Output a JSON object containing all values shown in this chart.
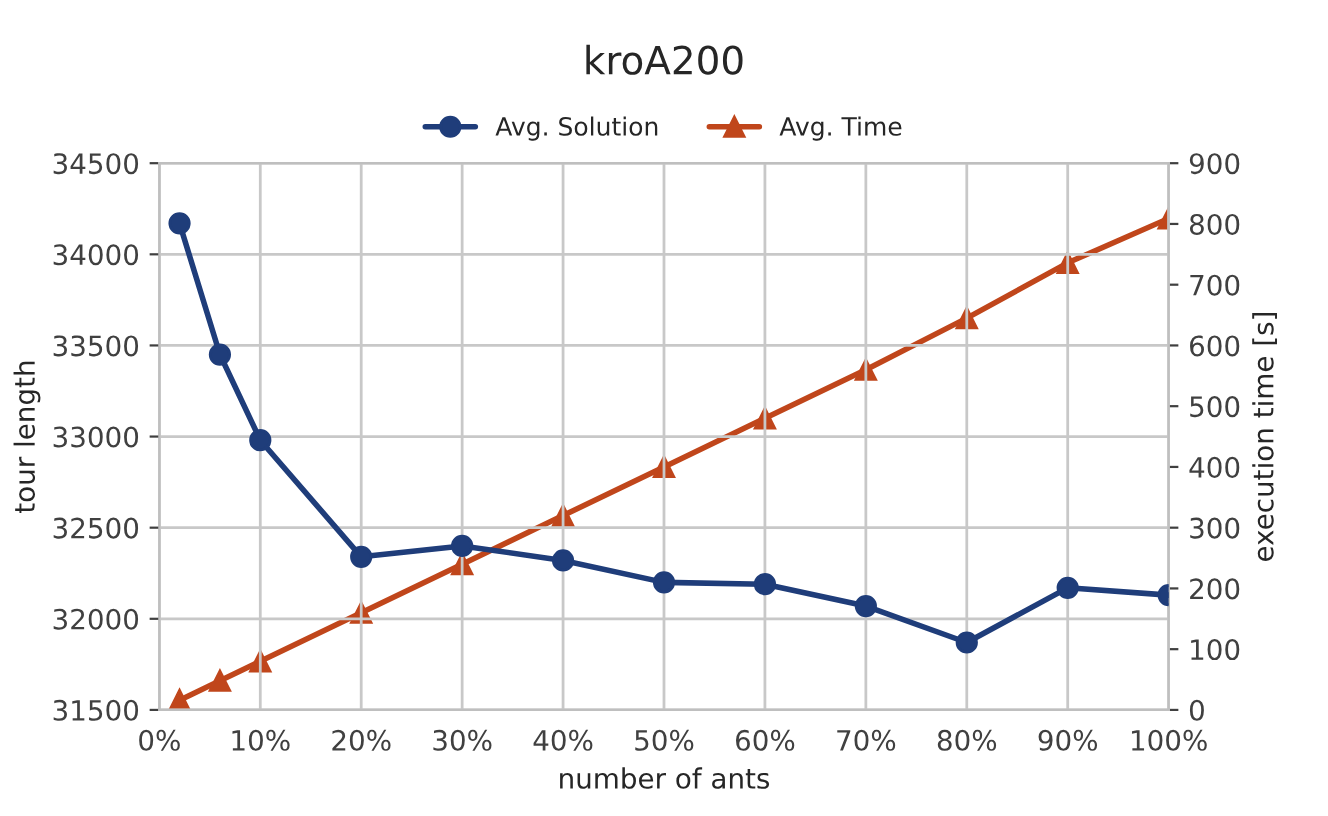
{
  "chart_data": {
    "type": "line",
    "title": "kroA200",
    "xlabel": "number of ants",
    "ylabel": "tour length",
    "y2label": "execution time [s]",
    "x": [
      0.02,
      0.06,
      0.1,
      0.2,
      0.3,
      0.4,
      0.5,
      0.6,
      0.7,
      0.8,
      0.9,
      1.0
    ],
    "series": [
      {
        "name": "Avg. Solution",
        "color": "#1f3d7a",
        "marker": "circle",
        "values": [
          34170,
          33450,
          32980,
          32340,
          32400,
          32320,
          32200,
          32190,
          32070,
          31870,
          32170,
          32130
        ]
      },
      {
        "name": "Avg. Time",
        "color": "#c0461b",
        "marker": "triangle",
        "axis": "y2",
        "values": [
          16,
          48,
          80,
          160,
          240,
          320,
          400,
          480,
          560,
          645,
          736,
          809
        ]
      }
    ],
    "xlim": [
      0,
      1
    ],
    "xticks": [
      {
        "value": 0,
        "label": "0%"
      },
      {
        "value": 0.1,
        "label": "10%"
      },
      {
        "value": 0.2,
        "label": "20%"
      },
      {
        "value": 0.3,
        "label": "30%"
      },
      {
        "value": 0.4,
        "label": "40%"
      },
      {
        "value": 0.5,
        "label": "50%"
      },
      {
        "value": 0.6,
        "label": "60%"
      },
      {
        "value": 0.7,
        "label": "70%"
      },
      {
        "value": 0.8,
        "label": "80%"
      },
      {
        "value": 0.9,
        "label": "90%"
      },
      {
        "value": 1.0,
        "label": "100%"
      }
    ],
    "ylim": [
      31500,
      34500
    ],
    "yticks": [
      31500,
      32000,
      32500,
      33000,
      33500,
      34000,
      34500
    ],
    "y2lim": [
      0,
      900
    ],
    "y2ticks": [
      0,
      100,
      200,
      300,
      400,
      500,
      600,
      700,
      800,
      900
    ],
    "grid": true,
    "legend": "top",
    "line_style": "solid"
  }
}
